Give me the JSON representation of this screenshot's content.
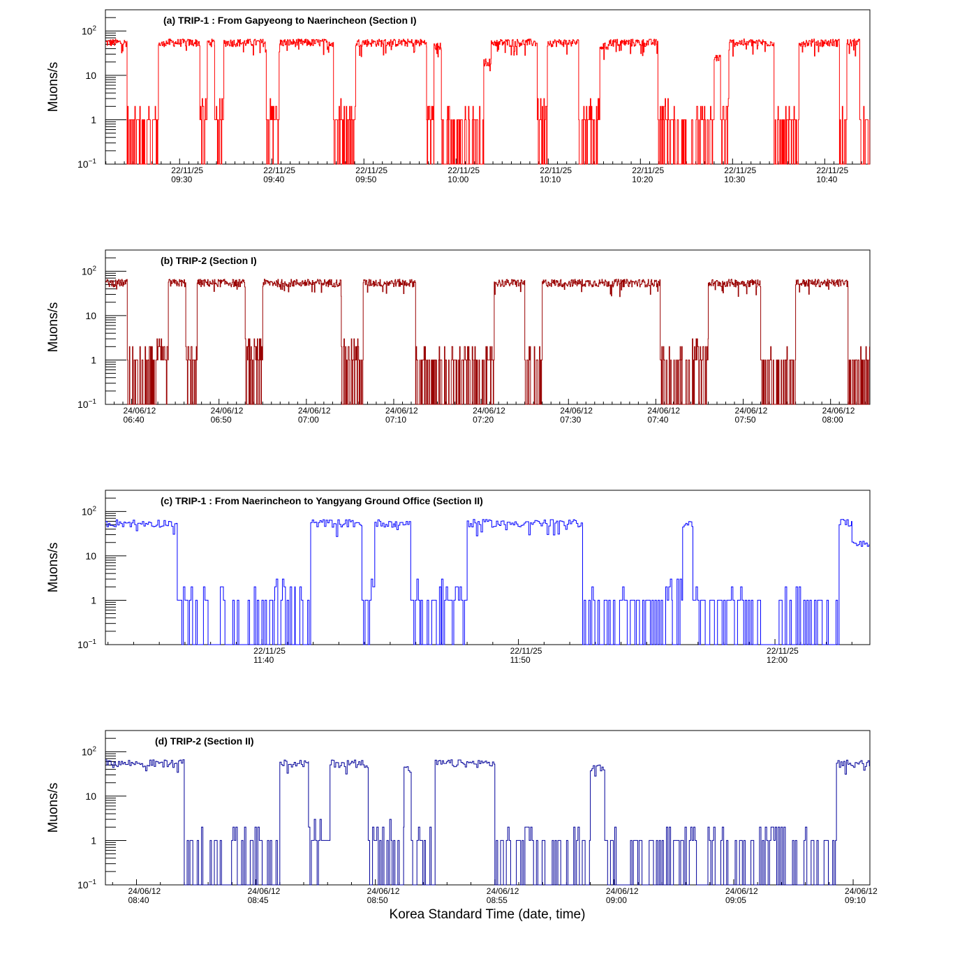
{
  "figure": {
    "x_axis_title": "Korea Standard Time (date, time)",
    "colors": {
      "a": "#ff0000",
      "b": "#990000",
      "c": "#0000ff",
      "d": "#000099",
      "axis": "#000000"
    }
  },
  "chart_data": [
    {
      "type": "line",
      "panel": "a",
      "title": "(a) TRIP-1 : From Gapyeong to Naerincheon (Section I)",
      "xlabel": "",
      "ylabel": "Muons/s",
      "yscale": "log",
      "ylim": [
        0.1,
        300
      ],
      "y_ticks": [
        {
          "base": "10",
          "exp": "−1"
        },
        {
          "base": "1",
          "exp": ""
        },
        {
          "base": "10",
          "exp": ""
        },
        {
          "base": "10",
          "exp": "2"
        }
      ],
      "x_unit": "minutes",
      "xlim": [
        -8.05,
        74.9
      ],
      "x_ticks": [
        {
          "date": "22/11/25",
          "time": "09:30"
        },
        {
          "date": "22/11/25",
          "time": "09:40"
        },
        {
          "date": "22/11/25",
          "time": "09:50"
        },
        {
          "date": "22/11/25",
          "time": "10:00"
        },
        {
          "date": "22/11/25",
          "time": "10:10"
        },
        {
          "date": "22/11/25",
          "time": "10:20"
        },
        {
          "date": "22/11/25",
          "time": "10:30"
        },
        {
          "date": "22/11/25",
          "time": "10:40"
        }
      ],
      "series": [
        {
          "name": "TRIP-1 Section I",
          "color": "#ff0000",
          "segments": [
            [
              -8.05,
              -5.7,
              55
            ],
            [
              -5.7,
              -2.9,
              0.8
            ],
            [
              -2.9,
              -2.3,
              1.5
            ],
            [
              -2.3,
              -1.7,
              50
            ],
            [
              -1.7,
              2.2,
              55
            ],
            [
              2.2,
              3.0,
              1.2
            ],
            [
              3.0,
              3.8,
              55
            ],
            [
              3.8,
              4.8,
              1.5
            ],
            [
              4.8,
              9.4,
              55
            ],
            [
              9.4,
              10.8,
              3
            ],
            [
              10.8,
              16.7,
              55
            ],
            [
              16.7,
              19.1,
              4
            ],
            [
              19.1,
              26.8,
              55
            ],
            [
              26.8,
              27.6,
              1.5
            ],
            [
              27.6,
              28.4,
              45
            ],
            [
              28.4,
              33.0,
              0.8
            ],
            [
              33.0,
              33.8,
              20
            ],
            [
              33.8,
              38.8,
              55
            ],
            [
              38.8,
              39.9,
              2
            ],
            [
              39.9,
              43.3,
              55
            ],
            [
              43.3,
              45.6,
              1.2
            ],
            [
              45.6,
              46.5,
              45
            ],
            [
              46.5,
              51.9,
              55
            ],
            [
              51.9,
              53.4,
              2.5
            ],
            [
              53.4,
              58.0,
              0.8
            ],
            [
              58.0,
              58.7,
              25
            ],
            [
              58.7,
              59.6,
              1.2
            ],
            [
              59.6,
              64.5,
              55
            ],
            [
              64.5,
              67.2,
              1.0
            ],
            [
              67.2,
              71.6,
              55
            ],
            [
              71.6,
              72.4,
              0.8
            ],
            [
              72.4,
              73.8,
              55
            ],
            [
              73.8,
              74.9,
              1.0
            ]
          ]
        }
      ]
    },
    {
      "type": "line",
      "panel": "b",
      "title": "(b) TRIP-2 (Section I)",
      "xlabel": "",
      "ylabel": "Muons/s",
      "yscale": "log",
      "ylim": [
        0.1,
        300
      ],
      "y_ticks": [
        {
          "base": "10",
          "exp": "−1"
        },
        {
          "base": "1",
          "exp": ""
        },
        {
          "base": "10",
          "exp": ""
        },
        {
          "base": "10",
          "exp": "2"
        }
      ],
      "x_unit": "minutes",
      "xlim": [
        -3.0,
        84.5
      ],
      "x_ticks": [
        {
          "date": "24/06/12",
          "time": "06:40"
        },
        {
          "date": "24/06/12",
          "time": "06:50"
        },
        {
          "date": "24/06/12",
          "time": "07:00"
        },
        {
          "date": "24/06/12",
          "time": "07:10"
        },
        {
          "date": "24/06/12",
          "time": "07:20"
        },
        {
          "date": "24/06/12",
          "time": "07:30"
        },
        {
          "date": "24/06/12",
          "time": "07:40"
        },
        {
          "date": "24/06/12",
          "time": "07:50"
        },
        {
          "date": "24/06/12",
          "time": "08:00"
        }
      ],
      "series": [
        {
          "name": "TRIP-2 Section I",
          "color": "#990000",
          "segments": [
            [
              -3.0,
              -0.5,
              55
            ],
            [
              -0.5,
              2.6,
              0.8
            ],
            [
              2.6,
              4.2,
              1.5
            ],
            [
              4.2,
              6.2,
              55
            ],
            [
              6.2,
              7.5,
              1.2
            ],
            [
              7.5,
              10.0,
              55
            ],
            [
              10.0,
              13.0,
              55
            ],
            [
              13.0,
              15.0,
              1.5
            ],
            [
              15.0,
              19.0,
              55
            ],
            [
              19.0,
              24.0,
              55
            ],
            [
              24.0,
              26.5,
              1.5
            ],
            [
              26.5,
              32.5,
              55
            ],
            [
              32.5,
              34.0,
              1.0
            ],
            [
              34.0,
              38.5,
              1.0
            ],
            [
              38.5,
              41.5,
              1.0
            ],
            [
              41.5,
              45.0,
              55
            ],
            [
              45.0,
              47.0,
              1.0
            ],
            [
              47.0,
              51.0,
              55
            ],
            [
              51.0,
              54.0,
              55
            ],
            [
              54.0,
              57.5,
              55
            ],
            [
              57.5,
              60.5,
              55
            ],
            [
              60.5,
              64.0,
              1.0
            ],
            [
              64.0,
              66.0,
              1.2
            ],
            [
              66.0,
              72.0,
              55
            ],
            [
              72.0,
              76.0,
              1.0
            ],
            [
              76.0,
              78.5,
              55
            ],
            [
              78.5,
              82.0,
              55
            ],
            [
              82.0,
              84.5,
              1.0
            ]
          ]
        }
      ]
    },
    {
      "type": "line",
      "panel": "c",
      "title": "(c) TRIP-1 : From Naerincheon to Yangyang Ground Office (Section II)",
      "xlabel": "",
      "ylabel": "Muons/s",
      "yscale": "log",
      "ylim": [
        0.1,
        300
      ],
      "y_ticks": [
        {
          "base": "10",
          "exp": "−1"
        },
        {
          "base": "1",
          "exp": ""
        },
        {
          "base": "10",
          "exp": ""
        },
        {
          "base": "10",
          "exp": "2"
        }
      ],
      "x_unit": "minutes",
      "xlim": [
        -6.1,
        23.7
      ],
      "x_ticks": [
        {
          "date": "22/11/25",
          "time": "11:40"
        },
        {
          "date": "22/11/25",
          "time": "11:50"
        },
        {
          "date": "22/11/25",
          "time": "12:00"
        }
      ],
      "series": [
        {
          "name": "TRIP-1 Section II",
          "color": "#0000ff",
          "segments": [
            [
              -6.1,
              -3.3,
              55
            ],
            [
              -3.3,
              0.5,
              0.8
            ],
            [
              0.5,
              1.3,
              1.5
            ],
            [
              1.3,
              1.9,
              1.0
            ],
            [
              1.9,
              2.9,
              55
            ],
            [
              2.9,
              3.9,
              55
            ],
            [
              3.9,
              4.4,
              2
            ],
            [
              4.4,
              5.2,
              55
            ],
            [
              5.2,
              5.8,
              55
            ],
            [
              5.8,
              6.2,
              1.5
            ],
            [
              6.2,
              7.0,
              0.8
            ],
            [
              7.0,
              8.0,
              1.2
            ],
            [
              8.0,
              12.5,
              55
            ],
            [
              12.5,
              15.5,
              0.8
            ],
            [
              15.5,
              16.0,
              1.2
            ],
            [
              16.0,
              16.4,
              1.2
            ],
            [
              16.4,
              16.8,
              55
            ],
            [
              16.8,
              22.5,
              0.8
            ],
            [
              22.5,
              23.0,
              55
            ],
            [
              23.0,
              23.7,
              20
            ]
          ]
        }
      ]
    },
    {
      "type": "line",
      "panel": "d",
      "title": "(d) TRIP-2 (Section II)",
      "xlabel": "Korea Standard Time (date, time)",
      "ylabel": "Muons/s",
      "yscale": "log",
      "ylim": [
        0.1,
        300
      ],
      "y_ticks": [
        {
          "base": "10",
          "exp": "−1"
        },
        {
          "base": "1",
          "exp": ""
        },
        {
          "base": "10",
          "exp": ""
        },
        {
          "base": "10",
          "exp": "2"
        }
      ],
      "x_unit": "minutes",
      "xlim": [
        -1.3,
        30.7
      ],
      "x_ticks": [
        {
          "date": "24/06/12",
          "time": "08:40"
        },
        {
          "date": "24/06/12",
          "time": "08:45"
        },
        {
          "date": "24/06/12",
          "time": "08:50"
        },
        {
          "date": "24/06/12",
          "time": "08:55"
        },
        {
          "date": "24/06/12",
          "time": "09:00"
        },
        {
          "date": "24/06/12",
          "time": "09:05"
        },
        {
          "date": "24/06/12",
          "time": "09:10"
        }
      ],
      "series": [
        {
          "name": "TRIP-2 Section II",
          "color": "#000099",
          "segments": [
            [
              -1.3,
              2.0,
              55
            ],
            [
              2.0,
              4.7,
              0.8
            ],
            [
              4.7,
              4.9,
              1.5
            ],
            [
              4.9,
              5.3,
              1.0
            ],
            [
              5.3,
              6.0,
              0.8
            ],
            [
              6.0,
              7.2,
              55
            ],
            [
              7.2,
              8.1,
              2
            ],
            [
              8.1,
              8.7,
              55
            ],
            [
              8.7,
              9.7,
              55
            ],
            [
              9.7,
              10.7,
              1.2
            ],
            [
              10.7,
              11.2,
              0.8
            ],
            [
              11.2,
              11.5,
              40
            ],
            [
              11.5,
              12.5,
              1.0
            ],
            [
              12.5,
              15.0,
              55
            ],
            [
              15.0,
              18.0,
              0.8
            ],
            [
              18.0,
              19.0,
              0.8
            ],
            [
              19.0,
              19.6,
              45
            ],
            [
              19.6,
              29.3,
              0.8
            ],
            [
              29.3,
              30.7,
              55
            ]
          ]
        }
      ]
    }
  ]
}
